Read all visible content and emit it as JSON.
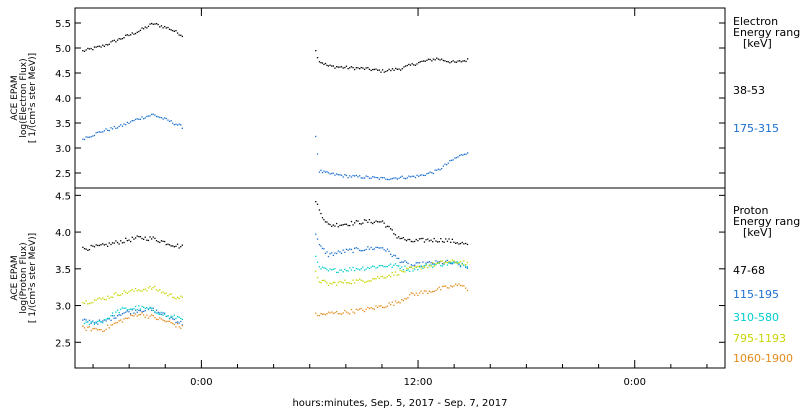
{
  "chart_data": [
    {
      "type": "scatter",
      "ylabel": [
        "ACE EPAM",
        "log(Electron Flux)",
        "[ 1/(cm²s ster MeV)]"
      ],
      "ylim": [
        2.2,
        5.8
      ],
      "yticks": [
        "2.5",
        "3.0",
        "3.5",
        "4.0",
        "4.5",
        "5.0",
        "5.5"
      ],
      "legend_title": [
        "Electron",
        "Energy range",
        "[keV]"
      ],
      "series": [
        {
          "name": "38-53",
          "color": "#000000",
          "segments": [
            {
              "x": [
                -6.6,
                -5.5,
                -4.5,
                -3.5,
                -2.7,
                -1.8,
                -1.0
              ],
              "y": [
                4.95,
                5.05,
                5.2,
                5.35,
                5.5,
                5.4,
                5.25
              ]
            },
            {
              "x": [
                6.3,
                6.5,
                7.0,
                8.0,
                9.0,
                10.0,
                11.0,
                12.0,
                13.0,
                14.0,
                14.8
              ],
              "y": [
                4.95,
                4.75,
                4.65,
                4.62,
                4.6,
                4.55,
                4.6,
                4.72,
                4.8,
                4.72,
                4.78
              ]
            }
          ]
        },
        {
          "name": "175-315",
          "color": "#1a6fd0",
          "segments": [
            {
              "x": [
                -6.6,
                -5.5,
                -4.5,
                -3.5,
                -2.7,
                -1.8,
                -1.0
              ],
              "y": [
                3.2,
                3.35,
                3.45,
                3.6,
                3.68,
                3.55,
                3.42
              ]
            },
            {
              "x": [
                6.3,
                6.5,
                7.0,
                8.0,
                9.0,
                10.0,
                11.0,
                12.0,
                13.0,
                14.0,
                14.8
              ],
              "y": [
                3.25,
                2.55,
                2.5,
                2.45,
                2.43,
                2.4,
                2.42,
                2.45,
                2.55,
                2.8,
                2.95
              ]
            }
          ]
        }
      ]
    },
    {
      "type": "scatter",
      "ylabel": [
        "ACE EPAM",
        "log(Proton Flux)",
        "[ 1/(cm²s ster MeV)]"
      ],
      "ylim": [
        2.15,
        4.6
      ],
      "yticks": [
        "2.5",
        "3.0",
        "3.5",
        "4.0",
        "4.5"
      ],
      "legend_title": [
        "Proton",
        "Energy range",
        "[keV]"
      ],
      "series": [
        {
          "name": "47-68",
          "color": "#000000",
          "segments": [
            {
              "x": [
                -6.6,
                -5.5,
                -4.5,
                -3.5,
                -2.7,
                -1.8,
                -1.0
              ],
              "y": [
                3.78,
                3.82,
                3.88,
                3.93,
                3.92,
                3.85,
                3.8
              ]
            },
            {
              "x": [
                6.3,
                6.5,
                7.0,
                8.0,
                9.0,
                10.0,
                10.8,
                11.5,
                12.5,
                13.5,
                14.5,
                14.8
              ],
              "y": [
                4.45,
                4.3,
                4.1,
                4.12,
                4.15,
                4.15,
                3.95,
                3.88,
                3.9,
                3.9,
                3.85,
                3.82
              ]
            }
          ]
        },
        {
          "name": "115-195",
          "color": "#1a6fd0",
          "segments": [
            {
              "x": [
                -6.6,
                -5.5,
                -4.5,
                -3.5,
                -2.7,
                -1.8,
                -1.0
              ],
              "y": [
                2.8,
                2.78,
                2.9,
                2.95,
                2.95,
                2.85,
                2.75
              ]
            },
            {
              "x": [
                6.3,
                6.5,
                7.0,
                8.0,
                9.0,
                10.0,
                10.8,
                11.5,
                12.5,
                13.5,
                14.5,
                14.8
              ],
              "y": [
                4.0,
                3.82,
                3.7,
                3.75,
                3.78,
                3.8,
                3.65,
                3.55,
                3.58,
                3.6,
                3.55,
                3.5
              ]
            }
          ]
        },
        {
          "name": "310-580",
          "color": "#00cccc",
          "segments": [
            {
              "x": [
                -6.6,
                -5.5,
                -4.5,
                -3.5,
                -2.7,
                -1.8,
                -1.0
              ],
              "y": [
                2.75,
                2.8,
                2.95,
                2.98,
                2.95,
                2.85,
                2.85
              ]
            },
            {
              "x": [
                6.3,
                6.5,
                7.0,
                8.0,
                9.0,
                10.0,
                10.8,
                11.5,
                12.5,
                13.5,
                14.5,
                14.8
              ],
              "y": [
                3.65,
                3.52,
                3.48,
                3.5,
                3.52,
                3.55,
                3.55,
                3.5,
                3.55,
                3.58,
                3.58,
                3.55
              ]
            }
          ]
        },
        {
          "name": "795-1193",
          "color": "#c8d400",
          "segments": [
            {
              "x": [
                -6.6,
                -5.5,
                -4.5,
                -3.5,
                -2.7,
                -1.8,
                -1.0
              ],
              "y": [
                3.05,
                3.1,
                3.18,
                3.22,
                3.25,
                3.15,
                3.1
              ]
            },
            {
              "x": [
                6.3,
                6.5,
                7.0,
                8.0,
                9.0,
                10.0,
                10.8,
                11.5,
                12.5,
                13.5,
                14.5,
                14.8
              ],
              "y": [
                3.45,
                3.35,
                3.3,
                3.33,
                3.35,
                3.4,
                3.45,
                3.5,
                3.55,
                3.6,
                3.6,
                3.55
              ]
            }
          ]
        },
        {
          "name": "1060-1900",
          "color": "#e38b1a",
          "segments": [
            {
              "x": [
                -6.6,
                -5.5,
                -4.5,
                -3.5,
                -2.7,
                -1.8,
                -1.0
              ],
              "y": [
                2.7,
                2.68,
                2.8,
                2.9,
                2.85,
                2.78,
                2.7
              ]
            },
            {
              "x": [
                6.3,
                6.5,
                7.0,
                8.0,
                9.0,
                10.0,
                10.8,
                11.5,
                12.5,
                13.5,
                14.5,
                14.8
              ],
              "y": [
                2.9,
                2.88,
                2.9,
                2.92,
                2.95,
                3.0,
                3.05,
                3.15,
                3.2,
                3.25,
                3.3,
                3.15
              ]
            }
          ]
        }
      ]
    }
  ],
  "x_axis": {
    "label": "hours:minutes, Sep.  5, 2017 - Sep.  7, 2017",
    "xlim": [
      -7.0,
      29.0
    ],
    "ticks": [
      {
        "x": 0,
        "label": "0:00"
      },
      {
        "x": 12,
        "label": "12:00"
      },
      {
        "x": 24,
        "label": "0:00"
      }
    ]
  }
}
